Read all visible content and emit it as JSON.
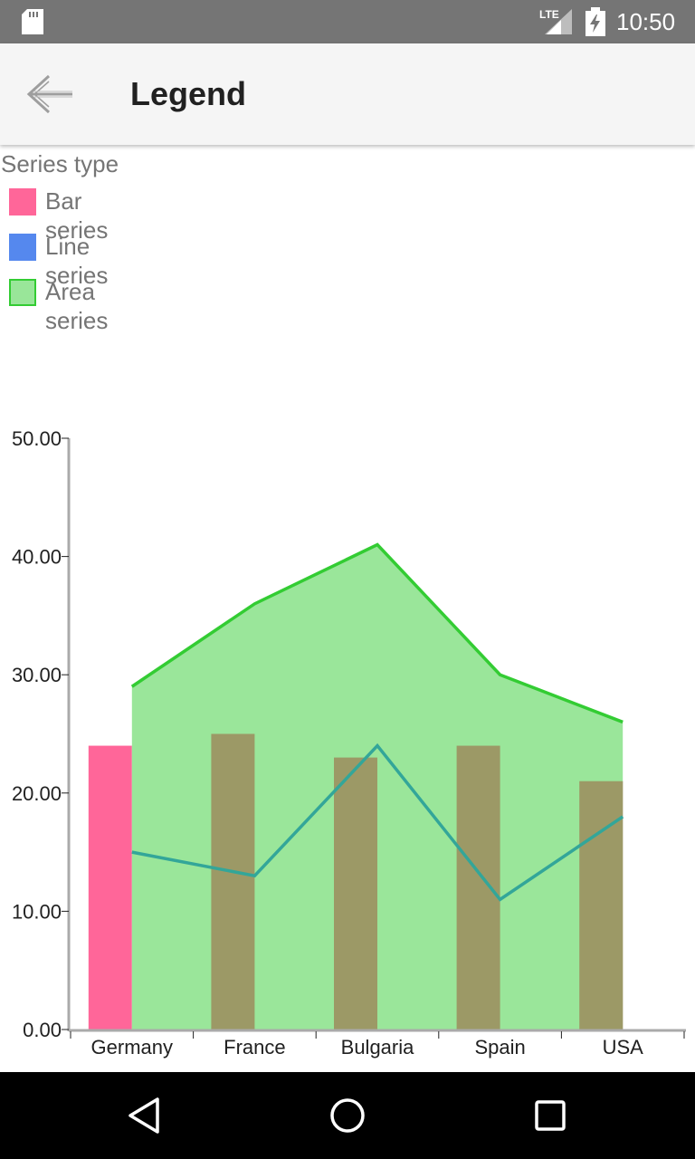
{
  "status_bar": {
    "time": "10:50",
    "network": "LTE",
    "icons": [
      "sd-card-icon",
      "signal-icon",
      "battery-charging-icon"
    ]
  },
  "app_bar": {
    "title": "Legend",
    "back_icon": "arrow-back-icon"
  },
  "legend": {
    "title": "Series type",
    "items": [
      {
        "label": "Bar series",
        "color": "#ff6699"
      },
      {
        "label": "Line series",
        "color": "#5588ee"
      },
      {
        "label": "Area series",
        "color": "#99e699",
        "border": "#33cc33"
      }
    ]
  },
  "chart_data": {
    "type": "bar",
    "categories": [
      "Germany",
      "France",
      "Bulgaria",
      "Spain",
      "USA"
    ],
    "ylim": [
      0,
      50
    ],
    "yticks": [
      "0.00",
      "10.00",
      "20.00",
      "30.00",
      "40.00",
      "50.00"
    ],
    "series": [
      {
        "name": "Bar series",
        "type": "bar",
        "color": "#ff6699",
        "values": [
          24,
          25,
          23,
          24,
          21
        ]
      },
      {
        "name": "Line series",
        "type": "line",
        "color": "#33a699",
        "values": [
          15,
          13,
          24,
          11,
          18
        ]
      },
      {
        "name": "Area series",
        "type": "area",
        "color": "#99e699",
        "stroke": "#33cc33",
        "values": [
          29,
          36,
          41,
          30,
          26
        ]
      }
    ],
    "overlap_bar_color": "#9c9966",
    "axis_color": "#aaaaaa"
  },
  "nav_bar": {
    "icons": [
      "back-triangle-icon",
      "home-circle-icon",
      "recents-square-icon"
    ]
  }
}
